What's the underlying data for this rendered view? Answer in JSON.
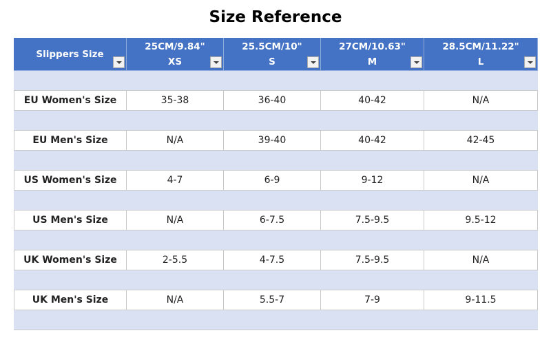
{
  "title": "Size Reference",
  "table": {
    "header": {
      "corner": "Slippers Size",
      "columns": [
        {
          "measure": "25CM/9.84\"",
          "size": "XS"
        },
        {
          "measure": "25.5CM/10\"",
          "size": "S"
        },
        {
          "measure": "27CM/10.63\"",
          "size": "M"
        },
        {
          "measure": "28.5CM/11.22\"",
          "size": "L"
        }
      ]
    },
    "rows": [
      {
        "label": "EU Women's Size",
        "values": [
          "35-38",
          "36-40",
          "40-42",
          "N/A"
        ]
      },
      {
        "label": "EU Men's Size",
        "values": [
          "N/A",
          "39-40",
          "40-42",
          "42-45"
        ]
      },
      {
        "label": "US Women's Size",
        "values": [
          "4-7",
          "6-9",
          "9-12",
          "N/A"
        ]
      },
      {
        "label": "US Men's Size",
        "values": [
          "N/A",
          "6-7.5",
          "7.5-9.5",
          "9.5-12"
        ]
      },
      {
        "label": "UK Women's Size",
        "values": [
          "2-5.5",
          "4-7.5",
          "7.5-9.5",
          "N/A"
        ]
      },
      {
        "label": "UK Men's Size",
        "values": [
          "N/A",
          "5.5-7",
          "7-9",
          "9-11.5"
        ]
      }
    ]
  }
}
